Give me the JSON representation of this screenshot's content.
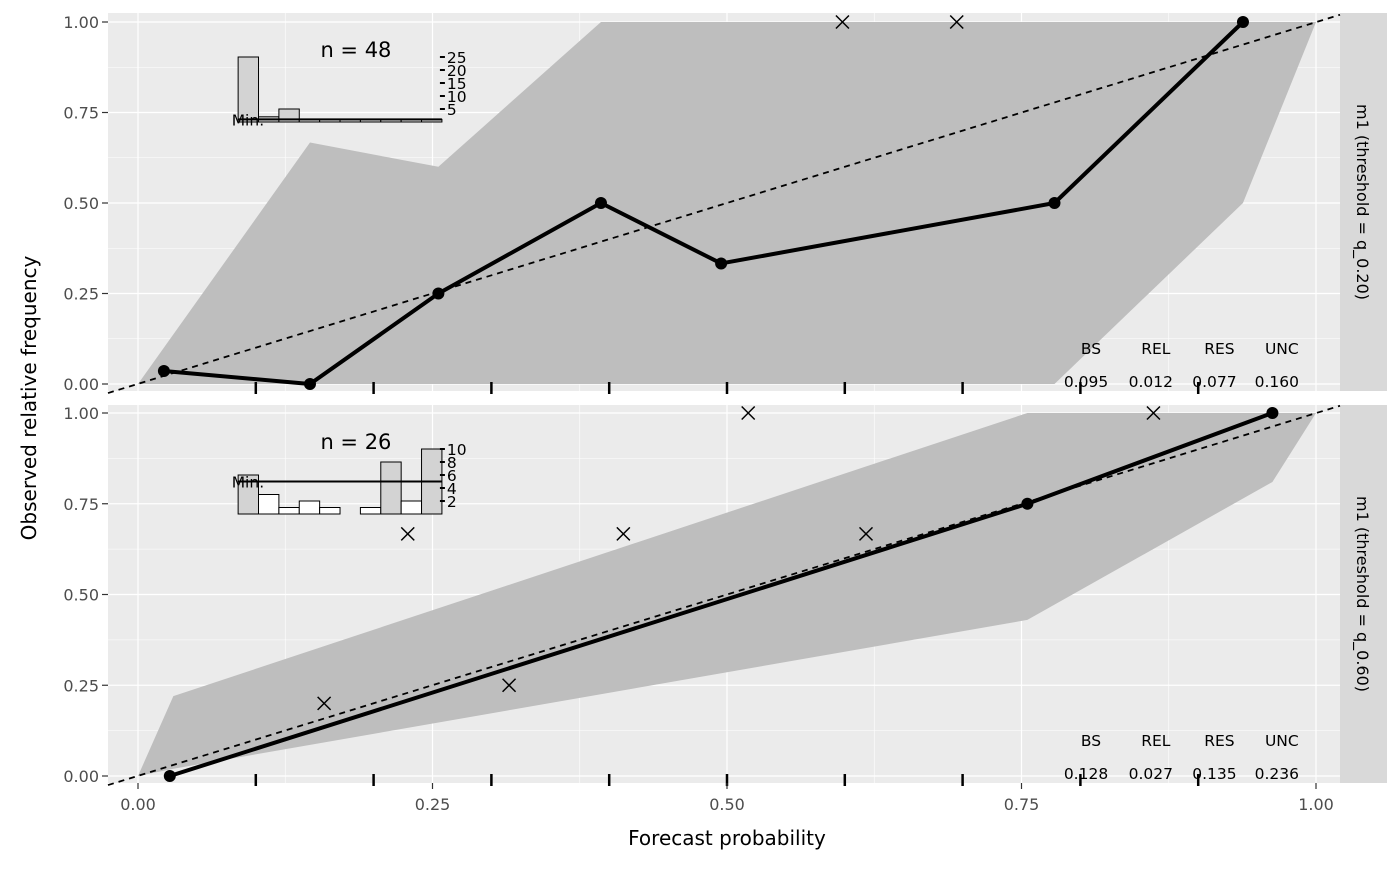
{
  "chart_data": {
    "type": "line",
    "xlabel": "Forecast probability",
    "ylabel": "Observed relative frequency",
    "xlim": [
      0,
      1
    ],
    "ylim": [
      0,
      1
    ],
    "x_ticks": [
      "0.00",
      "0.25",
      "0.50",
      "0.75",
      "1.00"
    ],
    "y_ticks": [
      "0.00",
      "0.25",
      "0.50",
      "0.75",
      "1.00"
    ],
    "grid": true,
    "panels": [
      {
        "strip": "m1 (threshold = q_0.20)",
        "n_label": "n = 48",
        "reliability": {
          "x": [
            0.022,
            0.146,
            0.255,
            0.393,
            0.495,
            0.778,
            0.938
          ],
          "y": [
            0.036,
            0.0,
            0.25,
            0.5,
            0.333,
            0.5,
            1.0
          ]
        },
        "crosses": [
          {
            "x": 0.598,
            "y": 1.0
          },
          {
            "x": 0.695,
            "y": 1.0
          }
        ],
        "ribbon_upper": {
          "x": [
            0.0,
            0.146,
            0.255,
            0.393,
            0.97,
            1.0
          ],
          "y": [
            0.0,
            0.667,
            0.6,
            1.0,
            1.0,
            1.0
          ]
        },
        "ribbon_lower": {
          "x": [
            0.0,
            0.022,
            0.146,
            0.255,
            0.393,
            0.495,
            0.778,
            0.938,
            1.0
          ],
          "y": [
            0.0,
            0.0,
            0.0,
            0.0,
            0.0,
            0.0,
            0.0,
            0.5,
            1.0
          ]
        },
        "hist_bins": [
          25,
          2,
          5,
          1,
          1,
          1,
          1,
          1,
          1,
          1
        ],
        "hist_labels": [
          "5",
          "10",
          "15",
          "20",
          "25"
        ],
        "hist_min_label": "Min.",
        "hist_min": 1,
        "stats_labels": [
          "BS",
          "REL",
          "RES",
          "UNC"
        ],
        "stats_values": [
          "0.095",
          "0.012",
          "0.077",
          "0.160"
        ]
      },
      {
        "strip": "m1 (threshold = q_0.60)",
        "n_label": "n = 26",
        "reliability": {
          "x": [
            0.027,
            0.755,
            0.963
          ],
          "y": [
            0.0,
            0.75,
            1.0
          ]
        },
        "crosses": [
          {
            "x": 0.158,
            "y": 0.2
          },
          {
            "x": 0.229,
            "y": 0.667
          },
          {
            "x": 0.315,
            "y": 0.25
          },
          {
            "x": 0.412,
            "y": 0.667
          },
          {
            "x": 0.518,
            "y": 1.0
          },
          {
            "x": 0.618,
            "y": 0.667
          },
          {
            "x": 0.862,
            "y": 1.0
          }
        ],
        "ribbon_upper": {
          "x": [
            0.0,
            0.03,
            0.755,
            0.963,
            1.0
          ],
          "y": [
            0.0,
            0.22,
            1.0,
            1.0,
            1.0
          ]
        },
        "ribbon_lower": {
          "x": [
            0.0,
            0.03,
            0.755,
            0.963,
            1.0
          ],
          "y": [
            0.0,
            0.02,
            0.43,
            0.81,
            1.0
          ]
        },
        "hist_bins": [
          6,
          3,
          1,
          2,
          1,
          0,
          1,
          8,
          2,
          10
        ],
        "hist_labels": [
          "2",
          "4",
          "6",
          "8",
          "10"
        ],
        "hist_min_label": "Min.",
        "hist_min": 5,
        "stats_labels": [
          "BS",
          "REL",
          "RES",
          "UNC"
        ],
        "stats_values": [
          "0.128",
          "0.027",
          "0.135",
          "0.236"
        ]
      }
    ]
  }
}
